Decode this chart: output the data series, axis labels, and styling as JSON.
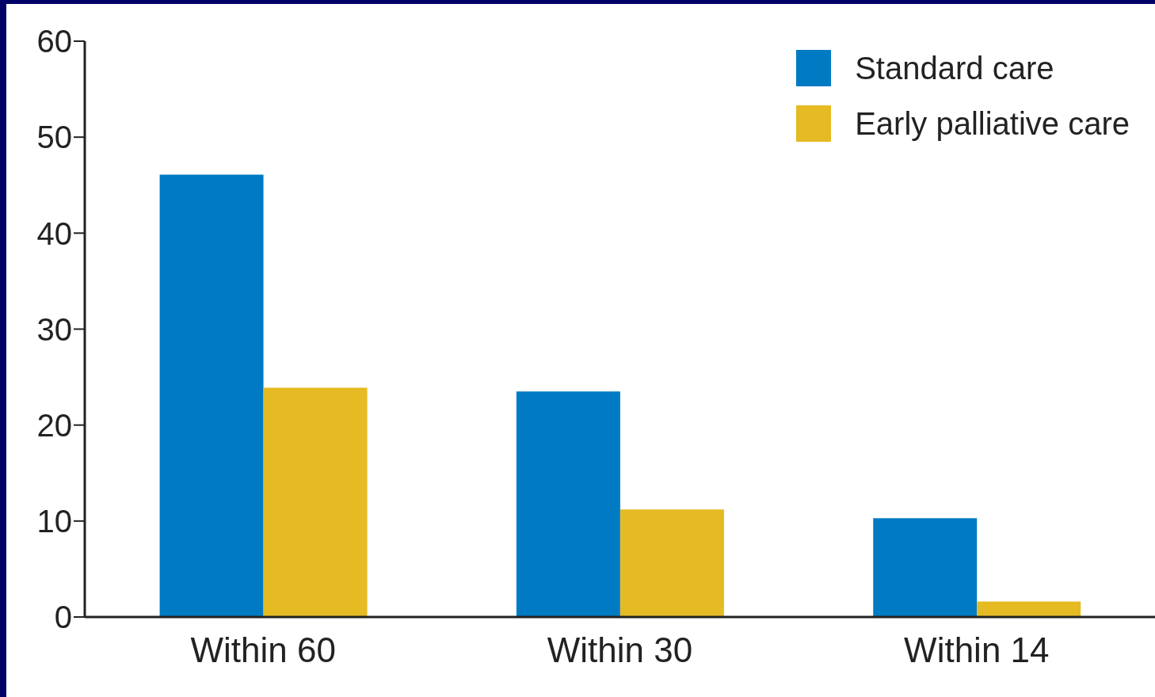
{
  "chart_data": {
    "type": "bar",
    "categories": [
      "Within 60",
      "Within 30",
      "Within 14"
    ],
    "series": [
      {
        "name": "Standard care",
        "color": "#007bc3",
        "values": [
          46.1,
          23.5,
          10.3
        ]
      },
      {
        "name": "Early palliative care",
        "color": "#e5ba22",
        "values": [
          23.9,
          11.2,
          1.6
        ]
      }
    ],
    "ylim": [
      0,
      60
    ],
    "yticks": [
      0,
      10,
      20,
      30,
      40,
      50,
      60
    ],
    "grid": false,
    "legend": "top right"
  }
}
